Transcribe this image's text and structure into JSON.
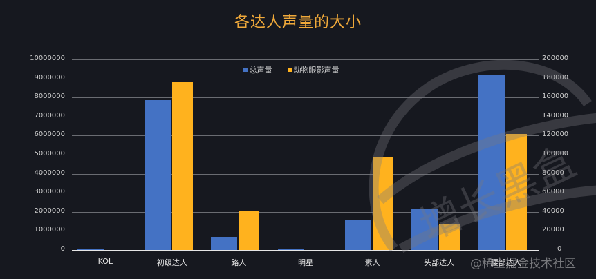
{
  "title": "各达人声量的大小",
  "legend": [
    {
      "name": "总声量",
      "color": "#4472c4"
    },
    {
      "name": "动物眼影声量",
      "color": "#ffb21e"
    }
  ],
  "left_axis_ticks": [
    "10000000",
    "9000000",
    "8000000",
    "7000000",
    "6000000",
    "5000000",
    "4000000",
    "3000000",
    "2000000",
    "1000000",
    "0"
  ],
  "right_axis_ticks": [
    "200000",
    "180000",
    "160000",
    "140000",
    "120000",
    "100000",
    "80000",
    "60000",
    "40000",
    "20000",
    "0"
  ],
  "categories": [
    "KOL",
    "初级达人",
    "路人",
    "明星",
    "素人",
    "头部达人",
    "腰部达人"
  ],
  "watermark": "@稀土掘金技术社区",
  "stamp_text": "增长黑盒",
  "chart_data": {
    "type": "bar",
    "title": "各达人声量的大小",
    "categories": [
      "KOL",
      "初级达人",
      "路人",
      "明星",
      "素人",
      "头部达人",
      "腰部达人"
    ],
    "series": [
      {
        "name": "总声量",
        "axis": "left",
        "color": "#4472c4",
        "values": [
          30000,
          7860000,
          690000,
          30000,
          1560000,
          2140000,
          9170000
        ]
      },
      {
        "name": "动物眼影声量",
        "axis": "right",
        "color": "#ffb21e",
        "values": [
          0,
          176000,
          41300,
          0,
          97800,
          27500,
          121700
        ]
      }
    ],
    "xlabel": "",
    "ylabel": "",
    "ylim_left": [
      0,
      10000000
    ],
    "ylim_right": [
      0,
      200000
    ],
    "grid": true,
    "legend_position": "top"
  }
}
